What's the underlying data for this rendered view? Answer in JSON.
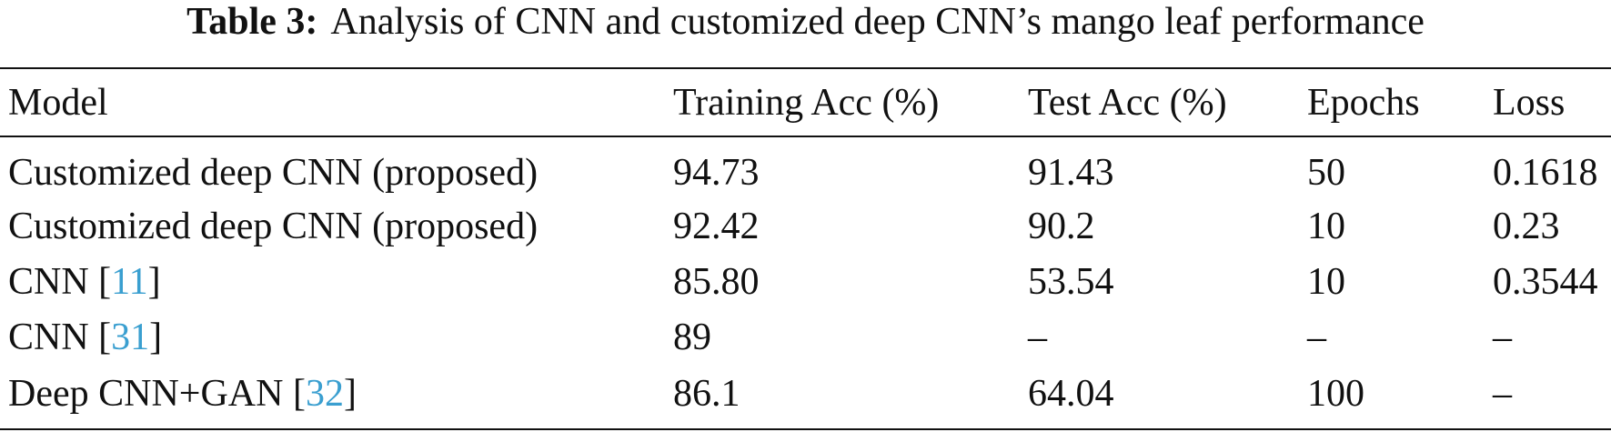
{
  "caption": {
    "label": "Table 3:",
    "text": "Analysis of CNN and customized deep CNN’s mango leaf performance"
  },
  "table": {
    "header": [
      "Model",
      "Training Acc (%)",
      "Test Acc (%)",
      "Epochs",
      "Loss"
    ],
    "rows": [
      [
        {
          "text": "Customized deep CNN (proposed)"
        },
        "94.73",
        "91.43",
        "50",
        "0.1618"
      ],
      [
        {
          "text": "Customized deep CNN (proposed)"
        },
        "92.42",
        "90.2",
        "10",
        "0.23"
      ],
      [
        {
          "text": "CNN [",
          "ref": "11",
          "end": "]"
        },
        "85.80",
        "53.54",
        "10",
        "0.3544"
      ],
      [
        {
          "text": "CNN [",
          "ref": "31",
          "end": "]"
        },
        "89",
        "–",
        "–",
        "–"
      ],
      [
        {
          "text": "Deep CNN+GAN [",
          "ref": "32",
          "end": "]"
        },
        "86.1",
        "64.04",
        "100",
        "–"
      ]
    ]
  }
}
